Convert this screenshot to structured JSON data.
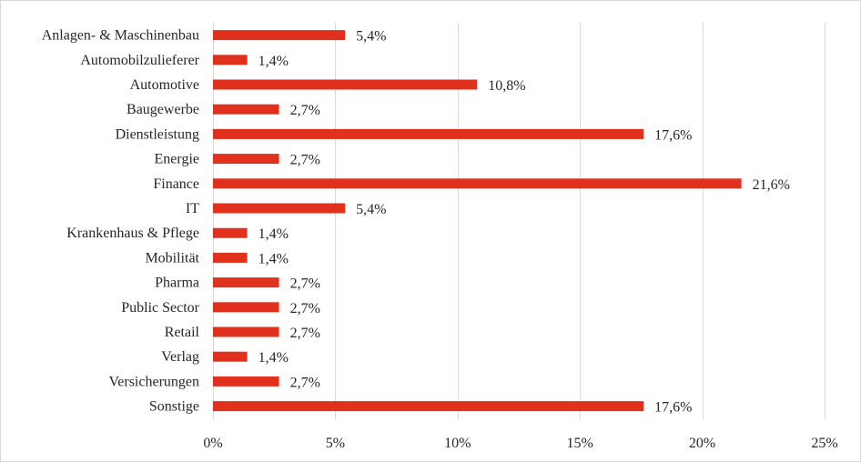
{
  "chart_data": {
    "type": "bar",
    "orientation": "horizontal",
    "categories": [
      "Anlagen- & Maschinenbau",
      "Automobilzulieferer",
      "Automotive",
      "Baugewerbe",
      "Dienstleistung",
      "Energie",
      "Finance",
      "IT",
      "Krankenhaus & Pflege",
      "Mobilität",
      "Pharma",
      "Public Sector",
      "Retail",
      "Verlag",
      "Versicherungen",
      "Sonstige"
    ],
    "values": [
      5.4,
      1.4,
      10.8,
      2.7,
      17.6,
      2.7,
      21.6,
      5.4,
      1.4,
      1.4,
      2.7,
      2.7,
      2.7,
      1.4,
      2.7,
      17.6
    ],
    "value_labels": [
      "5,4%",
      "1,4%",
      "10,8%",
      "2,7%",
      "17,6%",
      "2,7%",
      "21,6%",
      "5,4%",
      "1,4%",
      "1,4%",
      "2,7%",
      "2,7%",
      "2,7%",
      "1,4%",
      "2,7%",
      "17,6%"
    ],
    "xticks": [
      0,
      5,
      10,
      15,
      20,
      25
    ],
    "xtick_labels": [
      "0%",
      "5%",
      "10%",
      "15%",
      "20%",
      "25%"
    ],
    "xlim": [
      0,
      25
    ],
    "title": "",
    "xlabel": "",
    "ylabel": "",
    "grid": "vertical",
    "legend": "none",
    "colors": {
      "bar": "#e0301e",
      "grid": "#d9d9d9",
      "text": "#262626"
    }
  }
}
